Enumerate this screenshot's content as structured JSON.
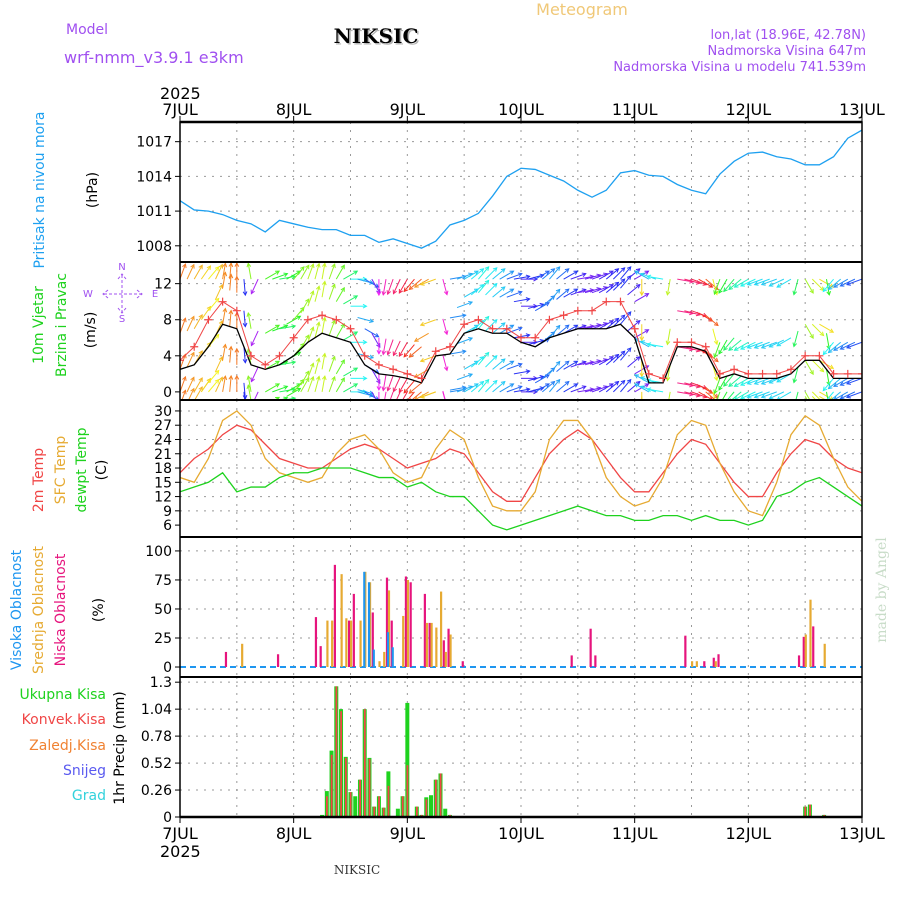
{
  "header": {
    "subtitle": "Meteogram",
    "model_label": "Model",
    "model_name": "wrf-nmm_v3.9.1 e3km",
    "station": "NIKSIC",
    "lonlat": "lon,lat (18.96E, 42.78N)",
    "elevation": "Nadmorska Visina 647m",
    "model_elevation": "Nadmorska Visina u modelu 741.539m"
  },
  "footer": {
    "station": "NIKSIC",
    "credit": "made by Angel"
  },
  "x_axis": {
    "year": "2025",
    "ticks": [
      "7JUL",
      "8JUL",
      "9JUL",
      "10JUL",
      "11JUL",
      "12JUL",
      "13JUL"
    ]
  },
  "labels": {
    "pressure": {
      "name": "Pritisak na nivou mora",
      "unit": "(hPa)"
    },
    "wind": {
      "name1": "10m Vjetar",
      "name2": "Brzina i Pravac",
      "unit": "(m/s)",
      "compass": {
        "n": "N",
        "s": "S",
        "w": "W",
        "e": "E"
      }
    },
    "temp": {
      "t2m": "2m Temp",
      "sfc": "SFC Temp",
      "dewpt": "dewpt Temp",
      "unit": "(C)"
    },
    "cloud": {
      "high": "Visoka Oblacnost",
      "mid": "Srednja Oblacnost",
      "low": "Niska Oblacnost",
      "unit": "(%)"
    },
    "precip": {
      "total": "Ukupna Kisa",
      "conv": "Konvek.Kisa",
      "frz": "Zaledj.Kisa",
      "snow": "Snijeg",
      "hail": "Grad",
      "unit": "1hr Precip (mm)"
    }
  },
  "colors": {
    "pressure": "#1ea0f0",
    "t2m": "#f04646",
    "sfc": "#e6aa32",
    "dewpt": "#1ed21e",
    "high": "#1e96f0",
    "mid": "#e6aa32",
    "low": "#e6147d",
    "total": "#1ed21e",
    "conv": "#f04646",
    "frz": "#f08232",
    "snow": "#5a5af0",
    "hail": "#32d2dc",
    "purple": "#a050f0",
    "orange": "#f0c878"
  },
  "chart_data": [
    {
      "type": "line",
      "name": "pressure",
      "ylabel": "Pritisak na nivou mora (hPa)",
      "x_step_hours": 3,
      "ylim": [
        1006.6,
        1018.7
      ],
      "yticks": [
        1008,
        1011,
        1014,
        1017
      ],
      "values": [
        1011.9,
        1011.1,
        1011.0,
        1010.7,
        1010.2,
        1009.9,
        1009.2,
        1010.2,
        1009.9,
        1009.6,
        1009.4,
        1009.4,
        1008.9,
        1008.9,
        1008.3,
        1008.6,
        1008.2,
        1007.8,
        1008.4,
        1009.8,
        1010.2,
        1010.8,
        1012.3,
        1014.0,
        1014.7,
        1014.6,
        1014.1,
        1013.6,
        1012.8,
        1012.2,
        1012.8,
        1014.3,
        1014.5,
        1014.1,
        1014.0,
        1013.3,
        1012.8,
        1012.5,
        1014.2,
        1015.3,
        1016.0,
        1016.1,
        1015.7,
        1015.5,
        1015.0,
        1015.0,
        1015.7,
        1017.3,
        1018.0
      ]
    },
    {
      "type": "line",
      "name": "wind",
      "ylabel": "10m Vjetar Brzina i Pravac (m/s)",
      "x_step_hours": 3,
      "ylim": [
        -0.9,
        14.4
      ],
      "yticks": [
        0,
        4,
        8,
        12
      ],
      "speed": [
        2.5,
        3,
        5,
        7.5,
        7,
        3,
        2.5,
        3,
        4,
        5.5,
        6.5,
        6,
        5.5,
        3,
        2,
        1.8,
        1.5,
        1,
        4,
        4.2,
        6.5,
        7,
        6.5,
        6.5,
        5.5,
        5,
        6,
        6.5,
        7,
        7,
        7,
        7.5,
        6,
        1,
        1,
        5,
        5,
        4.5,
        1.5,
        2,
        1.5,
        1.5,
        1.5,
        2,
        3.5,
        3.5,
        1.5,
        1.5,
        1.5
      ],
      "gust": [
        3.5,
        5,
        8,
        10,
        9,
        4,
        3,
        4,
        6,
        8,
        8.5,
        8,
        7,
        4,
        3,
        2.5,
        2,
        1.5,
        4.5,
        5,
        7.5,
        8,
        7,
        7,
        6,
        6,
        8,
        8.5,
        9,
        9,
        10,
        10,
        7,
        2,
        1.5,
        5.5,
        5.5,
        5,
        2,
        2.5,
        2,
        2,
        2,
        2.5,
        4,
        4,
        2,
        2,
        2
      ],
      "direction": [
        20,
        30,
        40,
        10,
        0,
        350,
        60,
        80,
        40,
        20,
        10,
        30,
        90,
        120,
        180,
        200,
        210,
        230,
        250,
        80,
        60,
        40,
        50,
        70,
        90,
        60,
        40,
        60,
        80,
        70,
        50,
        40,
        60,
        300,
        280,
        100,
        110,
        130,
        200,
        220,
        240,
        250,
        250,
        240,
        150,
        120,
        220,
        240,
        250
      ]
    },
    {
      "type": "line",
      "name": "temperature",
      "ylabel": "(C)",
      "x_step_hours": 3,
      "ylim": [
        3.5,
        32.3
      ],
      "yticks": [
        6,
        9,
        12,
        15,
        18,
        21,
        24,
        27,
        30
      ],
      "series": [
        {
          "name": "2m Temp",
          "values": [
            17,
            20,
            22,
            25,
            27,
            26,
            23,
            20,
            19,
            18,
            18,
            20,
            22,
            23,
            22,
            20,
            18,
            19,
            20,
            22,
            21,
            17,
            13,
            11,
            11,
            16,
            21,
            24,
            26,
            24,
            20,
            16,
            13,
            13,
            17,
            21,
            24,
            23,
            19,
            15,
            12,
            12,
            17,
            21,
            24,
            23,
            20,
            18,
            17
          ]
        },
        {
          "name": "SFC Temp",
          "values": [
            16,
            15,
            20,
            28,
            30,
            27,
            20,
            17,
            16,
            15,
            16,
            21,
            24,
            25,
            22,
            17,
            15,
            16,
            22,
            26,
            24,
            16,
            10,
            9,
            9,
            13,
            24,
            28,
            28,
            24,
            16,
            12,
            10,
            11,
            16,
            25,
            28,
            27,
            19,
            13,
            9,
            8,
            15,
            25,
            29,
            27,
            20,
            14,
            11
          ]
        },
        {
          "name": "dewpt Temp",
          "values": [
            13,
            14,
            15,
            17,
            13,
            14,
            14,
            16,
            17,
            17,
            18,
            18,
            18,
            17,
            16,
            16,
            14,
            15,
            13,
            12,
            12,
            9,
            6,
            5,
            6,
            7,
            8,
            9,
            10,
            9,
            8,
            8,
            7,
            7,
            8,
            8,
            7,
            8,
            7,
            7,
            6,
            7,
            12,
            13,
            15,
            16,
            14,
            12,
            10
          ]
        }
      ]
    },
    {
      "type": "bar",
      "name": "cloud",
      "ylabel": "(%)",
      "ylim": [
        -8.6,
        112
      ],
      "yticks": [
        0,
        25,
        50,
        75,
        100
      ],
      "fields": [
        "hour",
        "high",
        "mid",
        "low"
      ],
      "bars": [
        [
          10,
          0,
          0,
          13
        ],
        [
          13,
          0,
          20,
          0
        ],
        [
          21,
          0,
          0,
          11
        ],
        [
          29,
          0,
          0,
          43
        ],
        [
          30,
          0,
          0,
          18
        ],
        [
          31,
          0,
          40,
          0
        ],
        [
          32,
          0,
          40,
          0
        ],
        [
          33,
          0,
          0,
          88
        ],
        [
          34,
          0,
          80,
          0
        ],
        [
          35,
          0,
          42,
          0
        ],
        [
          36,
          0,
          40,
          40
        ],
        [
          37,
          0,
          0,
          63
        ],
        [
          38,
          0,
          40,
          0
        ],
        [
          39,
          82,
          82,
          0
        ],
        [
          40,
          73,
          73,
          0
        ],
        [
          41,
          15,
          0,
          47
        ],
        [
          42,
          0,
          5,
          0
        ],
        [
          43,
          0,
          13,
          0
        ],
        [
          44,
          30,
          66,
          77
        ],
        [
          45,
          17,
          0,
          40
        ],
        [
          47,
          0,
          44,
          0
        ],
        [
          48,
          0,
          75,
          78
        ],
        [
          49,
          0,
          0,
          73
        ],
        [
          52,
          0,
          38,
          63
        ],
        [
          53,
          0,
          38,
          38
        ],
        [
          54,
          0,
          34,
          0
        ],
        [
          55,
          0,
          65,
          0
        ],
        [
          56,
          0,
          13,
          23
        ],
        [
          57,
          0,
          28,
          33
        ],
        [
          60,
          0,
          0,
          5
        ],
        [
          83,
          0,
          0,
          10
        ],
        [
          87,
          0,
          0,
          33
        ],
        [
          88,
          0,
          0,
          10
        ],
        [
          107,
          0,
          0,
          27
        ],
        [
          108,
          0,
          5,
          0
        ],
        [
          109,
          0,
          5,
          0
        ],
        [
          111,
          0,
          0,
          5
        ],
        [
          113,
          0,
          5,
          8
        ],
        [
          114,
          0,
          0,
          11
        ],
        [
          131,
          0,
          0,
          10
        ],
        [
          132,
          0,
          28,
          26
        ],
        [
          133,
          0,
          58,
          0
        ],
        [
          134,
          0,
          0,
          35
        ],
        [
          136,
          0,
          20,
          0
        ]
      ]
    },
    {
      "type": "bar",
      "name": "precip",
      "ylabel": "1hr Precip (mm)",
      "ylim": [
        0,
        1.35
      ],
      "yticks": [
        0,
        0.26,
        0.52,
        0.78,
        1.04,
        1.3
      ],
      "fields": [
        "hour",
        "total",
        "conv"
      ],
      "bars": [
        [
          30,
          0.02,
          0
        ],
        [
          31,
          0.25,
          0.2
        ],
        [
          32,
          0.64,
          0.6
        ],
        [
          33,
          1.26,
          1.26
        ],
        [
          34,
          1.04,
          1.02
        ],
        [
          35,
          0.58,
          0.57
        ],
        [
          36,
          0.24,
          0.24
        ],
        [
          37,
          0.2,
          0
        ],
        [
          38,
          0.36,
          0.36
        ],
        [
          39,
          1.04,
          1.04
        ],
        [
          40,
          0.57,
          0.56
        ],
        [
          41,
          0.1,
          0.1
        ],
        [
          42,
          0.2,
          0.2
        ],
        [
          43,
          0.09,
          0.09
        ],
        [
          44,
          0.44,
          0.3
        ],
        [
          46,
          0.08,
          0
        ],
        [
          47,
          0.2,
          0.2
        ],
        [
          48,
          1.1,
          0.5
        ],
        [
          50,
          0.1,
          0.1
        ],
        [
          51,
          0.02,
          0.02
        ],
        [
          52,
          0.19,
          0.17
        ],
        [
          53,
          0.21,
          0
        ],
        [
          54,
          0.36,
          0.36
        ],
        [
          55,
          0.42,
          0.42
        ],
        [
          56,
          0.08,
          0
        ],
        [
          57,
          0.02,
          0.02
        ],
        [
          132,
          0.1,
          0.1
        ],
        [
          133,
          0.12,
          0.12
        ],
        [
          136,
          0.02,
          0.02
        ]
      ]
    }
  ]
}
